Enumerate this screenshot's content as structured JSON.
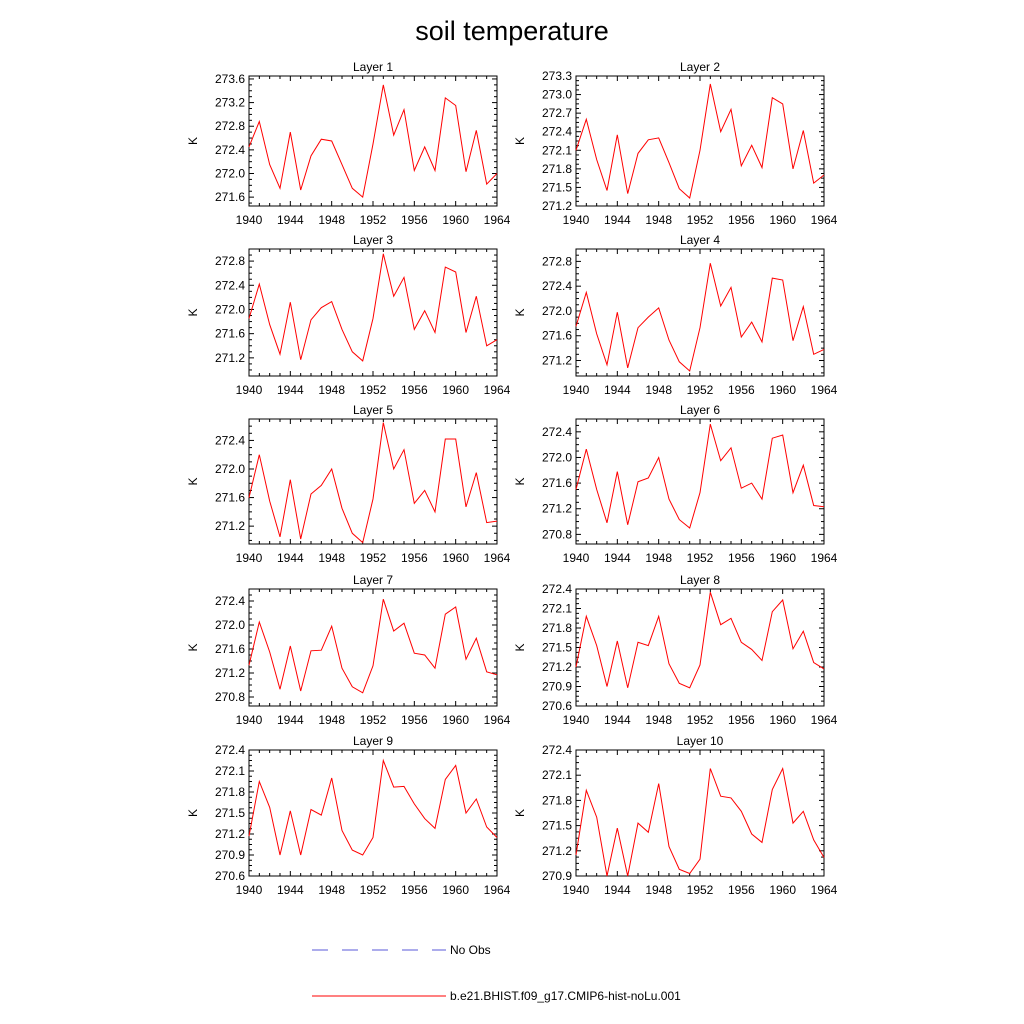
{
  "title": "soil temperature",
  "legend": [
    {
      "label": "No Obs",
      "color": "#5a5ad8",
      "dash": true
    },
    {
      "label": "b.e21.BHIST.f09_g17.CMIP6-hist-noLu.001",
      "color": "#ff0000",
      "dash": false
    }
  ],
  "chart_data": [
    {
      "type": "line",
      "title": "Layer 1",
      "ylabel": "K",
      "xlim": [
        1940,
        1964
      ],
      "ylim": [
        271.45,
        273.65
      ],
      "xticks": [
        1940,
        1944,
        1948,
        1952,
        1956,
        1960,
        1964
      ],
      "yticks": [
        271.6,
        272.0,
        272.4,
        272.8,
        273.2,
        273.6
      ],
      "ytick_labels": [
        "271.6",
        "272.0",
        "272.4",
        "272.8",
        "273.2",
        "273.6"
      ],
      "x": [
        1940,
        1941,
        1942,
        1943,
        1944,
        1945,
        1946,
        1947,
        1948,
        1949,
        1950,
        1951,
        1952,
        1953,
        1954,
        1955,
        1956,
        1957,
        1958,
        1959,
        1960,
        1961,
        1962,
        1963,
        1964
      ],
      "y": [
        272.45,
        272.88,
        272.15,
        271.75,
        272.7,
        271.72,
        272.3,
        272.58,
        272.55,
        272.15,
        271.75,
        271.6,
        272.5,
        273.5,
        272.65,
        273.08,
        272.05,
        272.45,
        272.05,
        273.28,
        273.15,
        272.03,
        272.73,
        271.82,
        272.0
      ]
    },
    {
      "type": "line",
      "title": "Layer 2",
      "ylabel": "K",
      "xlim": [
        1940,
        1964
      ],
      "ylim": [
        271.2,
        273.3
      ],
      "xticks": [
        1940,
        1944,
        1948,
        1952,
        1956,
        1960,
        1964
      ],
      "yticks": [
        271.2,
        271.5,
        271.8,
        272.1,
        272.4,
        272.7,
        273.0,
        273.3
      ],
      "ytick_labels": [
        "271.2",
        "271.5",
        "271.8",
        "272.1",
        "272.4",
        "272.7",
        "273.0",
        "273.3"
      ],
      "x": [
        1940,
        1941,
        1942,
        1943,
        1944,
        1945,
        1946,
        1947,
        1948,
        1949,
        1950,
        1951,
        1952,
        1953,
        1954,
        1955,
        1956,
        1957,
        1958,
        1959,
        1960,
        1961,
        1962,
        1963,
        1964
      ],
      "y": [
        272.1,
        272.6,
        271.95,
        271.45,
        272.35,
        271.4,
        272.05,
        272.27,
        272.3,
        271.9,
        271.48,
        271.33,
        272.1,
        273.17,
        272.4,
        272.76,
        271.85,
        272.18,
        271.82,
        272.95,
        272.85,
        271.8,
        272.42,
        271.57,
        271.7
      ]
    },
    {
      "type": "line",
      "title": "Layer 3",
      "ylabel": "K",
      "xlim": [
        1940,
        1964
      ],
      "ylim": [
        270.9,
        273.0
      ],
      "xticks": [
        1940,
        1944,
        1948,
        1952,
        1956,
        1960,
        1964
      ],
      "yticks": [
        271.2,
        271.6,
        272.0,
        272.4,
        272.8
      ],
      "ytick_labels": [
        "271.2",
        "271.6",
        "272.0",
        "272.4",
        "272.8"
      ],
      "x": [
        1940,
        1941,
        1942,
        1943,
        1944,
        1945,
        1946,
        1947,
        1948,
        1949,
        1950,
        1951,
        1952,
        1953,
        1954,
        1955,
        1956,
        1957,
        1958,
        1959,
        1960,
        1961,
        1962,
        1963,
        1964
      ],
      "y": [
        271.85,
        272.42,
        271.75,
        271.26,
        272.12,
        271.17,
        271.83,
        272.03,
        272.13,
        271.67,
        271.3,
        271.15,
        271.85,
        272.92,
        272.22,
        272.53,
        271.67,
        271.98,
        271.62,
        272.7,
        272.62,
        271.62,
        272.22,
        271.4,
        271.5
      ]
    },
    {
      "type": "line",
      "title": "Layer 4",
      "ylabel": "K",
      "xlim": [
        1940,
        1964
      ],
      "ylim": [
        270.95,
        273.0
      ],
      "xticks": [
        1940,
        1944,
        1948,
        1952,
        1956,
        1960,
        1964
      ],
      "yticks": [
        271.2,
        271.6,
        272.0,
        272.4,
        272.8
      ],
      "ytick_labels": [
        "271.2",
        "271.6",
        "272.0",
        "272.4",
        "272.8"
      ],
      "x": [
        1940,
        1941,
        1942,
        1943,
        1944,
        1945,
        1946,
        1947,
        1948,
        1949,
        1950,
        1951,
        1952,
        1953,
        1954,
        1955,
        1956,
        1957,
        1958,
        1959,
        1960,
        1961,
        1962,
        1963,
        1964
      ],
      "y": [
        271.75,
        272.3,
        271.63,
        271.13,
        271.98,
        271.08,
        271.73,
        271.9,
        272.05,
        271.53,
        271.18,
        271.03,
        271.73,
        272.77,
        272.08,
        272.38,
        271.58,
        271.82,
        271.5,
        272.53,
        272.5,
        271.52,
        272.07,
        271.3,
        271.38
      ]
    },
    {
      "type": "line",
      "title": "Layer 5",
      "ylabel": "K",
      "xlim": [
        1940,
        1964
      ],
      "ylim": [
        270.95,
        272.7
      ],
      "xticks": [
        1940,
        1944,
        1948,
        1952,
        1956,
        1960,
        1964
      ],
      "yticks": [
        271.2,
        271.6,
        272.0,
        272.4
      ],
      "ytick_labels": [
        "271.2",
        "271.6",
        "272.0",
        "272.4"
      ],
      "x": [
        1940,
        1941,
        1942,
        1943,
        1944,
        1945,
        1946,
        1947,
        1948,
        1949,
        1950,
        1951,
        1952,
        1953,
        1954,
        1955,
        1956,
        1957,
        1958,
        1959,
        1960,
        1961,
        1962,
        1963,
        1964
      ],
      "y": [
        271.6,
        272.2,
        271.55,
        271.05,
        271.85,
        271.02,
        271.65,
        271.77,
        272.0,
        271.45,
        271.1,
        270.97,
        271.58,
        272.65,
        272.0,
        272.27,
        271.52,
        271.7,
        271.4,
        272.42,
        272.42,
        271.47,
        271.95,
        271.25,
        271.27
      ]
    },
    {
      "type": "line",
      "title": "Layer 6",
      "ylabel": "K",
      "xlim": [
        1940,
        1964
      ],
      "ylim": [
        270.65,
        272.6
      ],
      "xticks": [
        1940,
        1944,
        1948,
        1952,
        1956,
        1960,
        1964
      ],
      "yticks": [
        270.8,
        271.2,
        271.6,
        272.0,
        272.4
      ],
      "ytick_labels": [
        "270.8",
        "271.2",
        "271.6",
        "272.0",
        "272.4"
      ],
      "x": [
        1940,
        1941,
        1942,
        1943,
        1944,
        1945,
        1946,
        1947,
        1948,
        1949,
        1950,
        1951,
        1952,
        1953,
        1954,
        1955,
        1956,
        1957,
        1958,
        1959,
        1960,
        1961,
        1962,
        1963,
        1964
      ],
      "y": [
        271.5,
        272.13,
        271.5,
        270.98,
        271.78,
        270.95,
        271.62,
        271.68,
        272.0,
        271.35,
        271.03,
        270.9,
        271.45,
        272.52,
        271.95,
        272.15,
        271.52,
        271.6,
        271.35,
        272.3,
        272.35,
        271.45,
        271.88,
        271.25,
        271.23
      ]
    },
    {
      "type": "line",
      "title": "Layer 7",
      "ylabel": "K",
      "xlim": [
        1940,
        1964
      ],
      "ylim": [
        270.65,
        272.6
      ],
      "xticks": [
        1940,
        1944,
        1948,
        1952,
        1956,
        1960,
        1964
      ],
      "yticks": [
        270.8,
        271.2,
        271.6,
        272.0,
        272.4
      ],
      "ytick_labels": [
        "270.8",
        "271.2",
        "271.6",
        "272.0",
        "272.4"
      ],
      "x": [
        1940,
        1941,
        1942,
        1943,
        1944,
        1945,
        1946,
        1947,
        1948,
        1949,
        1950,
        1951,
        1952,
        1953,
        1954,
        1955,
        1956,
        1957,
        1958,
        1959,
        1960,
        1961,
        1962,
        1963,
        1964
      ],
      "y": [
        271.33,
        272.05,
        271.55,
        270.93,
        271.65,
        270.9,
        271.57,
        271.58,
        271.98,
        271.28,
        270.97,
        270.87,
        271.32,
        272.43,
        271.9,
        272.03,
        271.53,
        271.5,
        271.28,
        272.18,
        272.3,
        271.43,
        271.78,
        271.22,
        271.17
      ]
    },
    {
      "type": "line",
      "title": "Layer 8",
      "ylabel": "K",
      "xlim": [
        1940,
        1964
      ],
      "ylim": [
        270.6,
        272.4
      ],
      "xticks": [
        1940,
        1944,
        1948,
        1952,
        1956,
        1960,
        1964
      ],
      "yticks": [
        270.6,
        270.9,
        271.2,
        271.5,
        271.8,
        272.1,
        272.4
      ],
      "ytick_labels": [
        "270.6",
        "270.9",
        "271.2",
        "271.5",
        "271.8",
        "272.1",
        "272.4"
      ],
      "x": [
        1940,
        1941,
        1942,
        1943,
        1944,
        1945,
        1946,
        1947,
        1948,
        1949,
        1950,
        1951,
        1952,
        1953,
        1954,
        1955,
        1956,
        1957,
        1958,
        1959,
        1960,
        1961,
        1962,
        1963,
        1964
      ],
      "y": [
        271.2,
        271.98,
        271.53,
        270.9,
        271.6,
        270.88,
        271.58,
        271.53,
        271.98,
        271.25,
        270.95,
        270.88,
        271.23,
        272.35,
        271.85,
        271.95,
        271.58,
        271.47,
        271.3,
        272.05,
        272.23,
        271.48,
        271.75,
        271.27,
        271.17
      ]
    },
    {
      "type": "line",
      "title": "Layer 9",
      "ylabel": "K",
      "xlim": [
        1940,
        1964
      ],
      "ylim": [
        270.6,
        272.4
      ],
      "xticks": [
        1940,
        1944,
        1948,
        1952,
        1956,
        1960,
        1964
      ],
      "yticks": [
        270.6,
        270.9,
        271.2,
        271.5,
        271.8,
        272.1,
        272.4
      ],
      "ytick_labels": [
        "270.6",
        "270.9",
        "271.2",
        "271.5",
        "271.8",
        "272.1",
        "272.4"
      ],
      "x": [
        1940,
        1941,
        1942,
        1943,
        1944,
        1945,
        1946,
        1947,
        1948,
        1949,
        1950,
        1951,
        1952,
        1953,
        1954,
        1955,
        1956,
        1957,
        1958,
        1959,
        1960,
        1961,
        1962,
        1963,
        1964
      ],
      "y": [
        271.17,
        271.95,
        271.58,
        270.9,
        271.53,
        270.9,
        271.55,
        271.47,
        272.0,
        271.25,
        270.97,
        270.9,
        271.15,
        272.25,
        271.87,
        271.88,
        271.63,
        271.42,
        271.28,
        271.98,
        272.18,
        271.5,
        271.7,
        271.3,
        271.15
      ]
    },
    {
      "type": "line",
      "title": "Layer 10",
      "ylabel": "K",
      "xlim": [
        1940,
        1964
      ],
      "ylim": [
        270.9,
        272.4
      ],
      "xticks": [
        1940,
        1944,
        1948,
        1952,
        1956,
        1960,
        1964
      ],
      "yticks": [
        270.9,
        271.2,
        271.5,
        271.8,
        272.1,
        272.4
      ],
      "ytick_labels": [
        "270.9",
        "271.2",
        "271.5",
        "271.8",
        "272.1",
        "272.4"
      ],
      "x": [
        1940,
        1941,
        1942,
        1943,
        1944,
        1945,
        1946,
        1947,
        1948,
        1949,
        1950,
        1951,
        1952,
        1953,
        1954,
        1955,
        1956,
        1957,
        1958,
        1959,
        1960,
        1961,
        1962,
        1963,
        1964
      ],
      "y": [
        271.15,
        271.92,
        271.6,
        270.9,
        271.47,
        270.9,
        271.53,
        271.42,
        272.0,
        271.25,
        270.98,
        270.93,
        271.1,
        272.18,
        271.85,
        271.83,
        271.67,
        271.4,
        271.3,
        271.93,
        272.18,
        271.53,
        271.67,
        271.33,
        271.12
      ]
    }
  ]
}
